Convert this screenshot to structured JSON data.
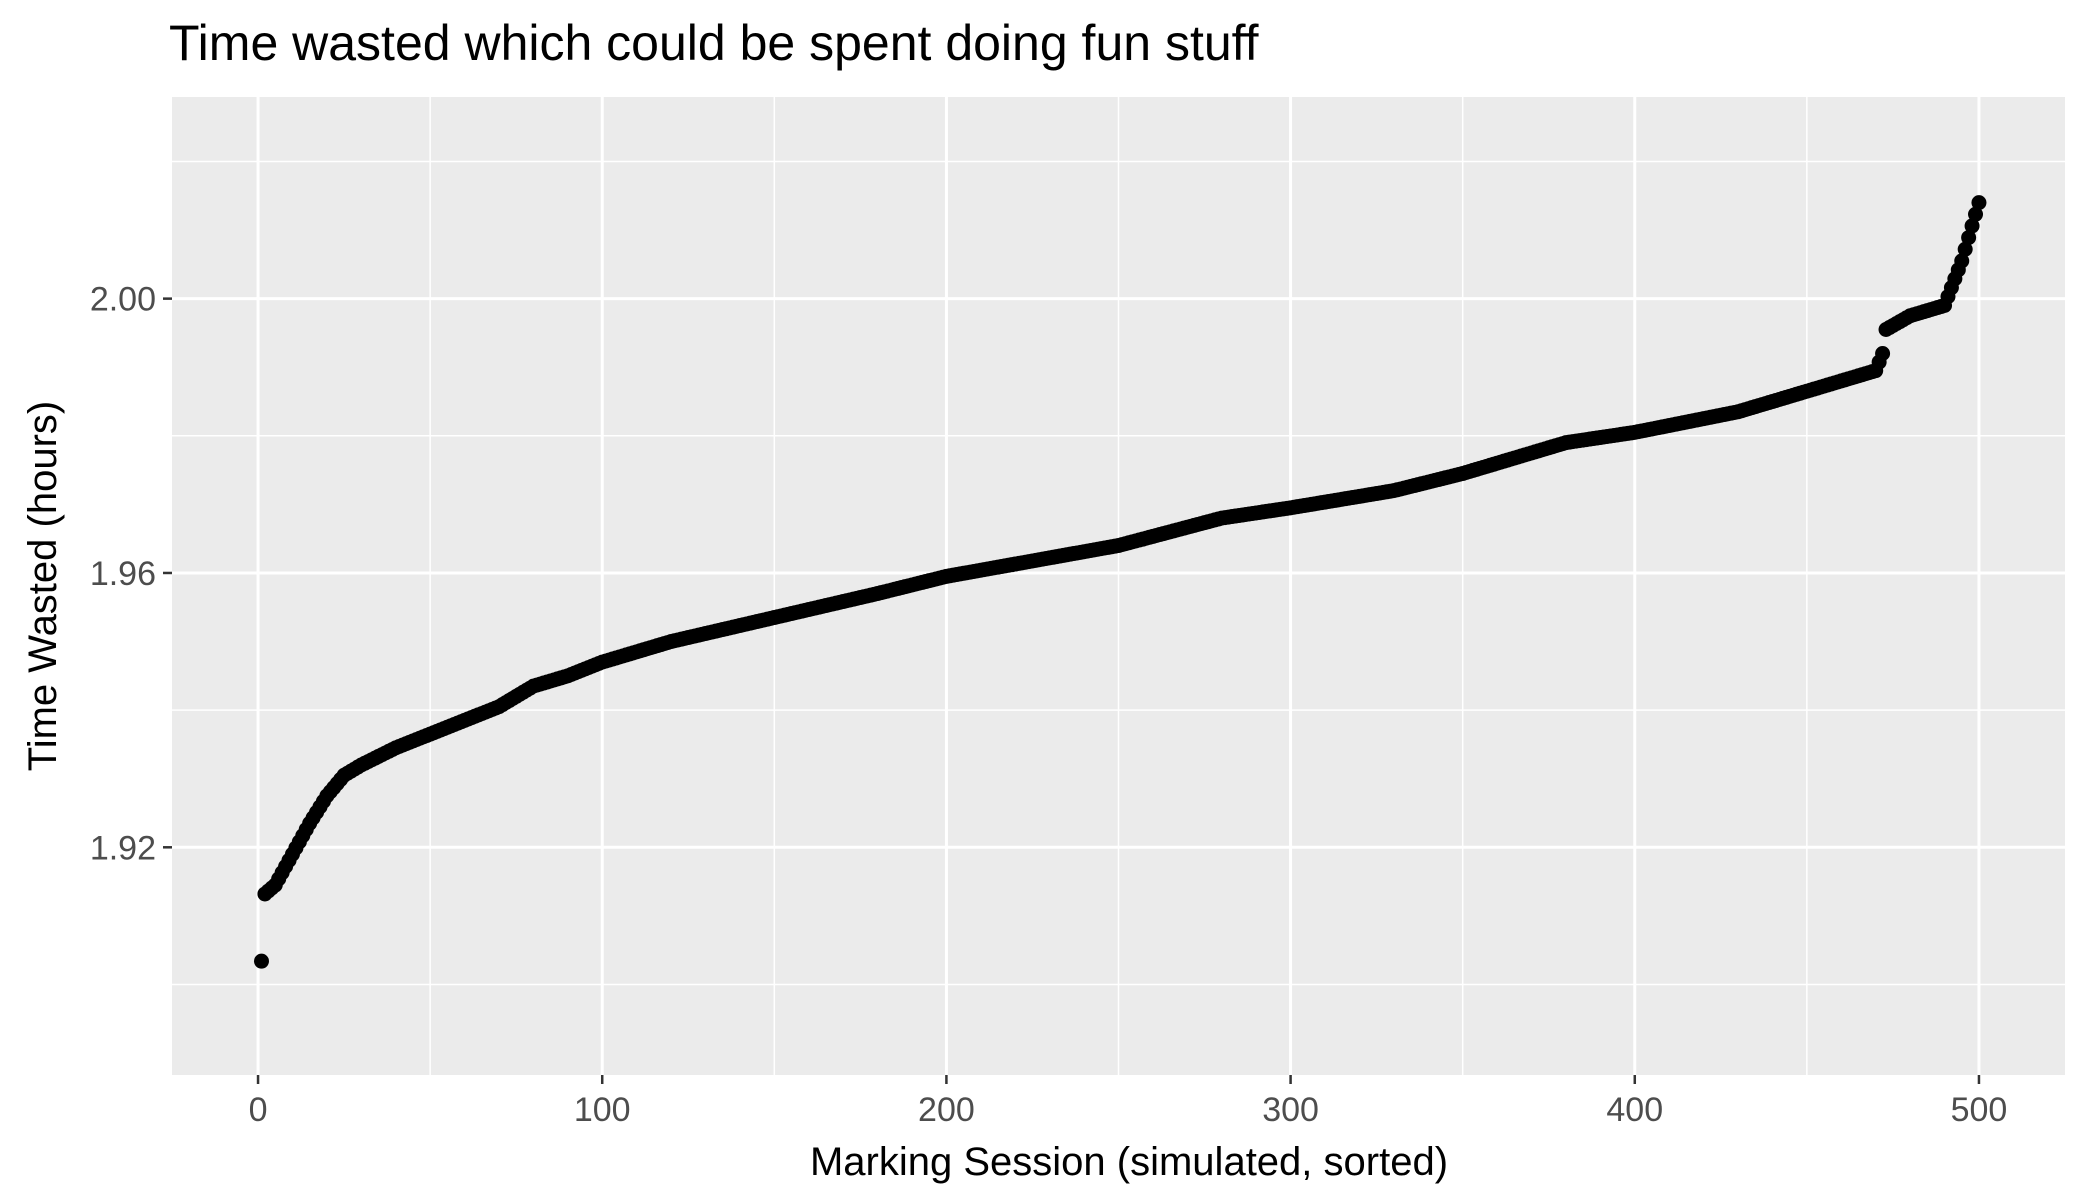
{
  "chart_data": {
    "type": "scatter",
    "title": "Time wasted which could be spent doing fun stuff",
    "xlabel": "Marking Session (simulated, sorted)",
    "ylabel": "Time Wasted (hours)",
    "xlim": [
      -25,
      525
    ],
    "ylim": [
      1.8868,
      2.0294
    ],
    "x_ticks": [
      0,
      100,
      200,
      300,
      400,
      500
    ],
    "x_tick_labels": [
      "0",
      "100",
      "200",
      "300",
      "400",
      "500"
    ],
    "x_minor_ticks": [
      50,
      150,
      250,
      350,
      450
    ],
    "y_ticks": [
      1.92,
      1.96,
      2.0
    ],
    "y_tick_labels": [
      "1.92",
      "1.96",
      "2.00"
    ],
    "y_minor_ticks": [
      1.9,
      1.94,
      1.98,
      2.02
    ],
    "grid": true,
    "legend": "none",
    "point_color": "#000000",
    "panel_background": "#ebebeb",
    "n_points": 500,
    "curve_anchors": {
      "x": [
        1,
        2,
        5,
        10,
        15,
        20,
        25,
        30,
        40,
        50,
        60,
        70,
        80,
        90,
        100,
        120,
        150,
        180,
        200,
        250,
        280,
        300,
        330,
        350,
        380,
        400,
        430,
        450,
        470,
        472,
        473,
        480,
        490,
        495,
        500
      ],
      "y": [
        1.9034,
        1.9132,
        1.9145,
        1.919,
        1.9235,
        1.9275,
        1.9305,
        1.932,
        1.9345,
        1.9365,
        1.9385,
        1.9405,
        1.9435,
        1.945,
        1.947,
        1.95,
        1.9535,
        1.957,
        1.9595,
        1.964,
        1.968,
        1.9695,
        1.972,
        1.9745,
        1.979,
        1.9805,
        1.9835,
        1.9865,
        1.9895,
        1.992,
        1.9955,
        1.9975,
        1.999,
        2.0055,
        2.014
      ]
    }
  }
}
